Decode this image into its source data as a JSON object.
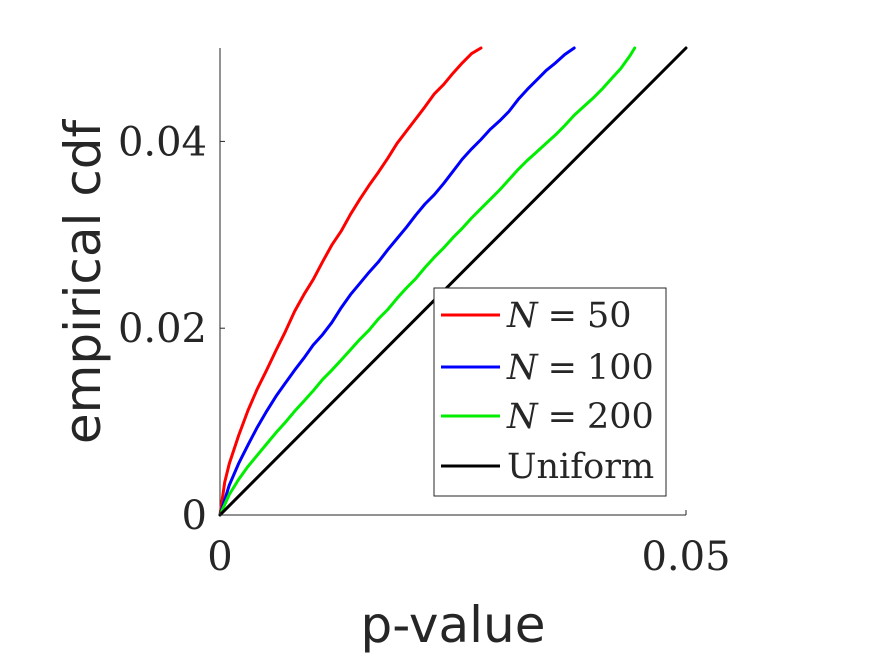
{
  "chart_data": {
    "type": "line",
    "title": "",
    "xlabel": "p-value",
    "ylabel": "empirical cdf",
    "xlim": [
      0,
      0.05
    ],
    "ylim": [
      0,
      0.05
    ],
    "x_ticks": [
      0,
      0.05
    ],
    "x_tick_labels": [
      "0",
      "0.05"
    ],
    "y_ticks": [
      0,
      0.02,
      0.04
    ],
    "y_tick_labels": [
      "0",
      "0.02",
      "0.04"
    ],
    "grid": false,
    "legend_position": "bottom-right",
    "series": [
      {
        "name": "N = 50",
        "legend_var": "N",
        "legend_op": "=",
        "legend_value": "50",
        "color": "#ff0000",
        "x": [
          0,
          0.0005,
          0.001,
          0.002,
          0.003,
          0.004,
          0.005,
          0.006,
          0.007,
          0.008,
          0.009,
          0.01,
          0.011,
          0.012,
          0.013,
          0.014,
          0.015,
          0.016,
          0.017,
          0.018,
          0.019,
          0.02,
          0.021,
          0.022,
          0.023,
          0.024,
          0.025,
          0.026,
          0.027,
          0.028
        ],
        "y": [
          0,
          0.0035,
          0.0055,
          0.0085,
          0.0112,
          0.0135,
          0.0155,
          0.0176,
          0.0196,
          0.0218,
          0.0236,
          0.0252,
          0.0271,
          0.0289,
          0.0304,
          0.0322,
          0.0338,
          0.0353,
          0.0367,
          0.0382,
          0.0398,
          0.0411,
          0.0424,
          0.0437,
          0.0451,
          0.0461,
          0.0473,
          0.0484,
          0.0494,
          0.05
        ]
      },
      {
        "name": "N = 100",
        "legend_var": "N",
        "legend_op": "=",
        "legend_value": "100",
        "color": "#0000ff",
        "x": [
          0,
          0.001,
          0.002,
          0.003,
          0.004,
          0.005,
          0.006,
          0.007,
          0.008,
          0.009,
          0.01,
          0.011,
          0.012,
          0.013,
          0.014,
          0.015,
          0.016,
          0.017,
          0.018,
          0.019,
          0.02,
          0.021,
          0.022,
          0.023,
          0.024,
          0.025,
          0.026,
          0.027,
          0.028,
          0.029,
          0.03,
          0.031,
          0.032,
          0.033,
          0.034,
          0.035,
          0.036,
          0.037,
          0.038
        ],
        "y": [
          0,
          0.0032,
          0.0055,
          0.0075,
          0.0094,
          0.0111,
          0.0127,
          0.0141,
          0.0155,
          0.0168,
          0.0182,
          0.0193,
          0.0206,
          0.0222,
          0.0236,
          0.0248,
          0.026,
          0.0271,
          0.0284,
          0.0296,
          0.0308,
          0.0321,
          0.0333,
          0.0343,
          0.0355,
          0.0368,
          0.0381,
          0.0392,
          0.0402,
          0.0413,
          0.0422,
          0.0432,
          0.0445,
          0.0456,
          0.0466,
          0.0476,
          0.0484,
          0.0493,
          0.05
        ]
      },
      {
        "name": "N = 200",
        "legend_var": "N",
        "legend_op": "=",
        "legend_value": "200",
        "color": "#00ee00",
        "x": [
          0,
          0.001,
          0.002,
          0.003,
          0.004,
          0.005,
          0.006,
          0.007,
          0.008,
          0.009,
          0.01,
          0.011,
          0.012,
          0.013,
          0.014,
          0.015,
          0.016,
          0.017,
          0.018,
          0.019,
          0.02,
          0.021,
          0.022,
          0.023,
          0.024,
          0.025,
          0.026,
          0.027,
          0.028,
          0.029,
          0.03,
          0.031,
          0.032,
          0.033,
          0.034,
          0.035,
          0.036,
          0.037,
          0.038,
          0.039,
          0.04,
          0.041,
          0.042,
          0.043,
          0.044,
          0.0445
        ],
        "y": [
          0,
          0.0022,
          0.0038,
          0.0052,
          0.0064,
          0.0076,
          0.0088,
          0.0099,
          0.0111,
          0.0122,
          0.0133,
          0.0145,
          0.0155,
          0.0166,
          0.0177,
          0.0188,
          0.0198,
          0.021,
          0.022,
          0.0232,
          0.0243,
          0.0253,
          0.0265,
          0.0276,
          0.0286,
          0.0297,
          0.0307,
          0.0318,
          0.0328,
          0.0338,
          0.0348,
          0.0359,
          0.037,
          0.038,
          0.0389,
          0.0398,
          0.0407,
          0.0417,
          0.0428,
          0.0437,
          0.0446,
          0.0456,
          0.0467,
          0.0478,
          0.0492,
          0.05
        ]
      },
      {
        "name": "Uniform",
        "color": "#000000",
        "x": [
          0,
          0.05
        ],
        "y": [
          0,
          0.05
        ]
      }
    ]
  }
}
